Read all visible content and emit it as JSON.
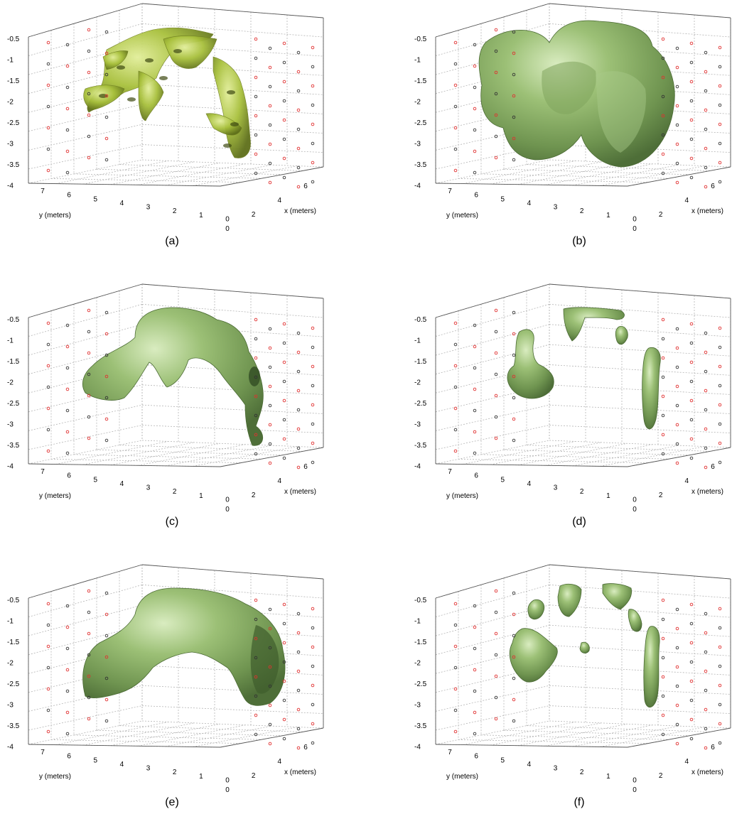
{
  "figure": {
    "panels": [
      {
        "caption": "(a)",
        "style": "fragments"
      },
      {
        "caption": "(b)",
        "style": "large"
      },
      {
        "caption": "(c)",
        "style": "arch"
      },
      {
        "caption": "(d)",
        "style": "pieces"
      },
      {
        "caption": "(e)",
        "style": "archwide"
      },
      {
        "caption": "(f)",
        "style": "pieces2"
      }
    ]
  },
  "chart_data": {
    "type": "3d-isosurface",
    "z_ticks": [
      "-0.5",
      "-1",
      "-1.5",
      "-2",
      "-2.5",
      "-3",
      "-3.5",
      "-4"
    ],
    "y_ticks": [
      "7",
      "6",
      "5",
      "4",
      "3",
      "2",
      "1",
      "0"
    ],
    "x_ticks": [
      "0",
      "2",
      "4",
      "6"
    ],
    "xlabel": "x (meters)",
    "ylabel": "y (meters)",
    "zlim": [
      -4.2,
      -0.4
    ],
    "ylim": [
      0,
      7.5
    ],
    "xlim": [
      0,
      7.5
    ],
    "grid": true,
    "surface_color": "#8fb36b",
    "fragment_color": "#a6bf3a",
    "sensor_colors": [
      "#e03030",
      "#333333"
    ]
  }
}
